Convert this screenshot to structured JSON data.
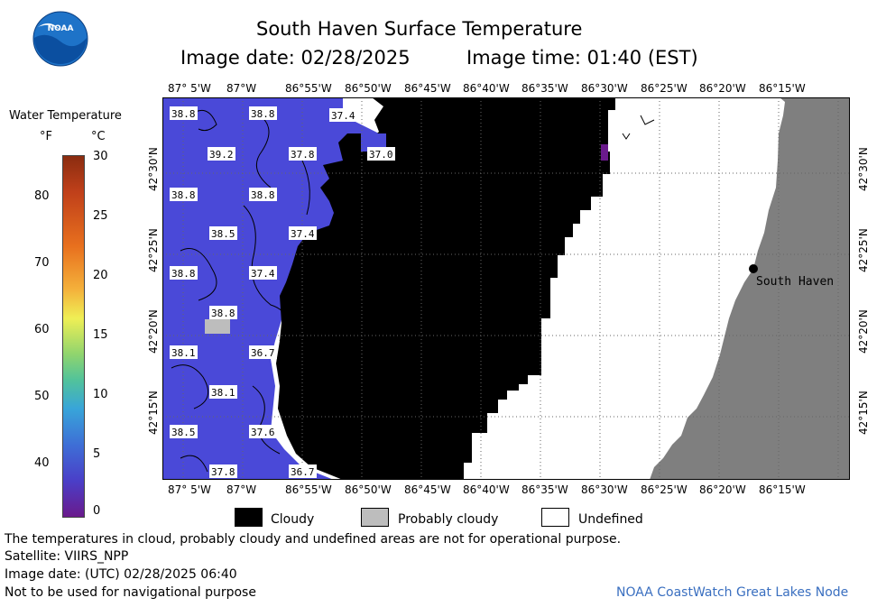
{
  "header": {
    "title": "South Haven Surface Temperature",
    "image_date": "Image date: 02/28/2025",
    "image_time": "Image time: 01:40 (EST)"
  },
  "logo": {
    "text": "NOAA"
  },
  "colorbar": {
    "title": "Water Temperature",
    "unit_f": "°F",
    "unit_c": "°C",
    "f_ticks": [
      "80",
      "70",
      "60",
      "50",
      "40"
    ],
    "c_ticks": [
      "30",
      "25",
      "20",
      "15",
      "10",
      "5",
      "0"
    ]
  },
  "map": {
    "lon_labels": [
      "87° 5'W",
      "87°W",
      "86°55'W",
      "86°50'W",
      "86°45'W",
      "86°40'W",
      "86°35'W",
      "86°30'W",
      "86°25'W",
      "86°20'W",
      "86°15'W"
    ],
    "lat_labels": [
      "42°30'N",
      "42°25'N",
      "42°20'N",
      "42°15'N"
    ],
    "place_label": "South Haven",
    "temp_labels": [
      "38.8",
      "38.8",
      "37.4",
      "39.2",
      "37.8",
      "37.0",
      "38.8",
      "38.8",
      "38.5",
      "37.4",
      "38.8",
      "37.4",
      "38.8",
      "38.1",
      "36.7",
      "38.1",
      "38.5",
      "37.6",
      "37.8",
      "36.7"
    ],
    "colors": {
      "water": "#4a49d8",
      "cloud": "#000000",
      "land": "#7f7f7f",
      "undefined": "#ffffff",
      "probably_cloudy": "#bdbdbd"
    }
  },
  "legend": {
    "cloudy": "Cloudy",
    "probably_cloudy": "Probably cloudy",
    "undefined": "Undefined"
  },
  "footer": {
    "disclaimer": "The temperatures in cloud, probably cloudy and undefined areas are not for operational purpose.",
    "satellite": "Satellite: VIIRS_NPP",
    "utc_date": "Image date: (UTC) 02/28/2025  06:40",
    "nav_warning": "Not to be used for navigational purpose",
    "credit": "NOAA CoastWatch Great Lakes Node"
  }
}
